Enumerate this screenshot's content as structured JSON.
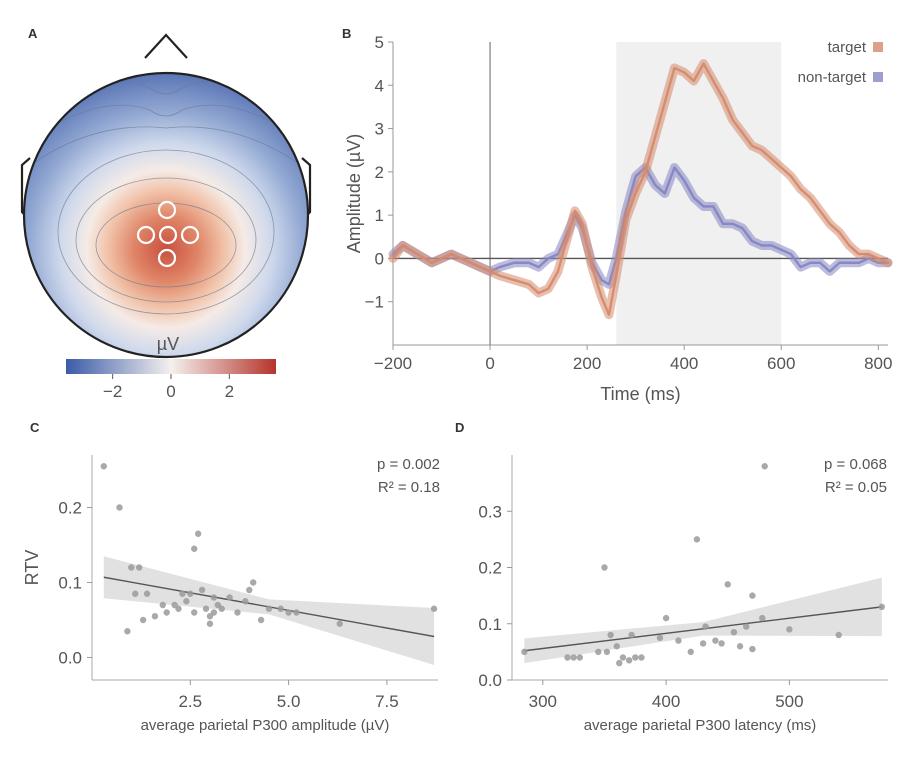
{
  "panels": {
    "A": {
      "label": "A",
      "colorbar": {
        "unit": "µV",
        "ticks": [
          -2,
          0,
          2
        ],
        "min": -3.6,
        "max": 3.6,
        "colors": [
          "#3b5ba7",
          "#f4f0ee",
          "#b5342c"
        ]
      }
    },
    "B": {
      "label": "B"
    },
    "C": {
      "label": "C",
      "annotation": [
        "p = 0.002",
        "R² = 0.18"
      ]
    },
    "D": {
      "label": "D",
      "annotation": [
        "p = 0.068",
        "R² = 0.05"
      ]
    }
  },
  "chart_data": [
    {
      "type": "heatmap",
      "panel": "A",
      "description_free": true,
      "unit": "µV",
      "range": [
        -3.6,
        3.6
      ],
      "electrodes": 5
    },
    {
      "type": "line",
      "panel": "B",
      "xlabel": "Time (ms)",
      "ylabel": "Amplitude (µV)",
      "xlim": [
        -200,
        820
      ],
      "ylim": [
        -2,
        5
      ],
      "xticks": [
        -200,
        0,
        200,
        400,
        600,
        800
      ],
      "yticks": [
        -1,
        0,
        1,
        2,
        3,
        4,
        5
      ],
      "shaded_window": [
        260,
        600
      ],
      "legend": "top-right",
      "series": [
        {
          "name": "target",
          "color": "#d58a6b",
          "x": [
            -200,
            -180,
            -150,
            -120,
            -100,
            -80,
            -60,
            -40,
            -20,
            0,
            20,
            50,
            80,
            100,
            120,
            140,
            160,
            175,
            190,
            210,
            230,
            245,
            260,
            280,
            300,
            320,
            340,
            360,
            380,
            400,
            420,
            440,
            460,
            480,
            500,
            520,
            540,
            560,
            580,
            600,
            620,
            640,
            660,
            680,
            700,
            720,
            740,
            760,
            780,
            800,
            820
          ],
          "y": [
            0,
            0.3,
            0.1,
            -0.1,
            0,
            0.1,
            0,
            -0.1,
            -0.2,
            -0.3,
            -0.4,
            -0.5,
            -0.6,
            -0.8,
            -0.7,
            -0.3,
            0.5,
            1.1,
            0.8,
            -0.2,
            -0.9,
            -1.3,
            -0.4,
            0.9,
            1.5,
            2,
            2.8,
            3.6,
            4.4,
            4.3,
            4.1,
            4.5,
            4.1,
            3.7,
            3.2,
            2.9,
            2.6,
            2.5,
            2.3,
            2.1,
            1.9,
            1.6,
            1.4,
            1.1,
            0.8,
            0.6,
            0.3,
            0.1,
            0.1,
            0,
            -0.1
          ]
        },
        {
          "name": "non-target",
          "color": "#8585c2",
          "x": [
            -200,
            -180,
            -150,
            -120,
            -100,
            -80,
            -60,
            -40,
            -20,
            0,
            20,
            50,
            80,
            100,
            120,
            140,
            160,
            175,
            190,
            210,
            230,
            245,
            260,
            280,
            300,
            320,
            340,
            360,
            380,
            400,
            420,
            440,
            460,
            480,
            500,
            520,
            540,
            560,
            580,
            600,
            620,
            640,
            660,
            680,
            700,
            720,
            740,
            760,
            780,
            800,
            820
          ],
          "y": [
            0.1,
            0.3,
            0.1,
            -0.1,
            0,
            0.1,
            0,
            -0.1,
            -0.2,
            -0.3,
            -0.2,
            -0.1,
            -0.1,
            -0.2,
            0,
            0.1,
            0.6,
            1,
            0.7,
            -0.1,
            -0.5,
            -0.6,
            0,
            1.1,
            1.9,
            2.1,
            1.7,
            1.5,
            2.1,
            1.8,
            1.4,
            1.2,
            1.2,
            0.8,
            0.8,
            0.7,
            0.4,
            0.3,
            0.3,
            0.2,
            0.1,
            -0.2,
            -0.1,
            -0.1,
            -0.3,
            -0.1,
            -0.1,
            -0.1,
            0,
            -0.1,
            -0.1
          ]
        }
      ]
    },
    {
      "type": "scatter",
      "panel": "C",
      "xlabel": "average parietal P300 amplitude (µV)",
      "ylabel": "RTV",
      "xlim": [
        0,
        8.8
      ],
      "ylim": [
        -0.03,
        0.27
      ],
      "xticks": [
        2.5,
        5,
        7.5
      ],
      "yticks": [
        0.0,
        0.1,
        0.2
      ],
      "regression": {
        "x": [
          0.3,
          8.7
        ],
        "y": [
          0.107,
          0.028
        ],
        "band": [
          0.028,
          0.01,
          0.038
        ]
      },
      "x": [
        0.3,
        0.7,
        1.0,
        1.1,
        1.3,
        1.4,
        1.6,
        1.8,
        1.9,
        2.1,
        2.2,
        2.4,
        2.5,
        2.6,
        2.6,
        2.7,
        2.8,
        2.9,
        3.0,
        3.0,
        3.1,
        3.1,
        3.2,
        3.3,
        3.5,
        3.7,
        3.9,
        4.0,
        4.1,
        4.3,
        4.5,
        4.8,
        5.0,
        5.2,
        6.3,
        8.7,
        0.9,
        2.3,
        1.2
      ],
      "y": [
        0.255,
        0.2,
        0.12,
        0.085,
        0.05,
        0.085,
        0.055,
        0.07,
        0.06,
        0.07,
        0.065,
        0.075,
        0.085,
        0.06,
        0.145,
        0.165,
        0.09,
        0.065,
        0.055,
        0.045,
        0.08,
        0.06,
        0.07,
        0.065,
        0.08,
        0.06,
        0.075,
        0.09,
        0.1,
        0.05,
        0.065,
        0.065,
        0.06,
        0.06,
        0.045,
        0.065,
        0.035,
        0.085,
        0.12
      ]
    },
    {
      "type": "scatter",
      "panel": "D",
      "xlabel": "average parietal P300 latency (ms)",
      "ylabel": "",
      "xlim": [
        275,
        580
      ],
      "ylim": [
        0,
        0.4
      ],
      "xticks": [
        300,
        400,
        500
      ],
      "yticks": [
        0.0,
        0.1,
        0.2,
        0.3
      ],
      "regression": {
        "x": [
          285,
          575
        ],
        "y": [
          0.052,
          0.13
        ],
        "band": [
          0.022,
          0.012,
          0.052
        ]
      },
      "x": [
        285,
        320,
        325,
        330,
        345,
        350,
        355,
        360,
        365,
        370,
        372,
        375,
        380,
        395,
        400,
        410,
        420,
        425,
        430,
        432,
        440,
        445,
        450,
        460,
        465,
        470,
        480,
        500,
        540,
        575,
        352,
        362,
        478,
        470,
        455
      ],
      "y": [
        0.05,
        0.04,
        0.04,
        0.04,
        0.05,
        0.2,
        0.08,
        0.06,
        0.04,
        0.035,
        0.08,
        0.04,
        0.04,
        0.075,
        0.11,
        0.07,
        0.05,
        0.25,
        0.065,
        0.095,
        0.07,
        0.065,
        0.17,
        0.06,
        0.095,
        0.15,
        0.38,
        0.09,
        0.08,
        0.13,
        0.05,
        0.03,
        0.11,
        0.055,
        0.085
      ]
    }
  ]
}
